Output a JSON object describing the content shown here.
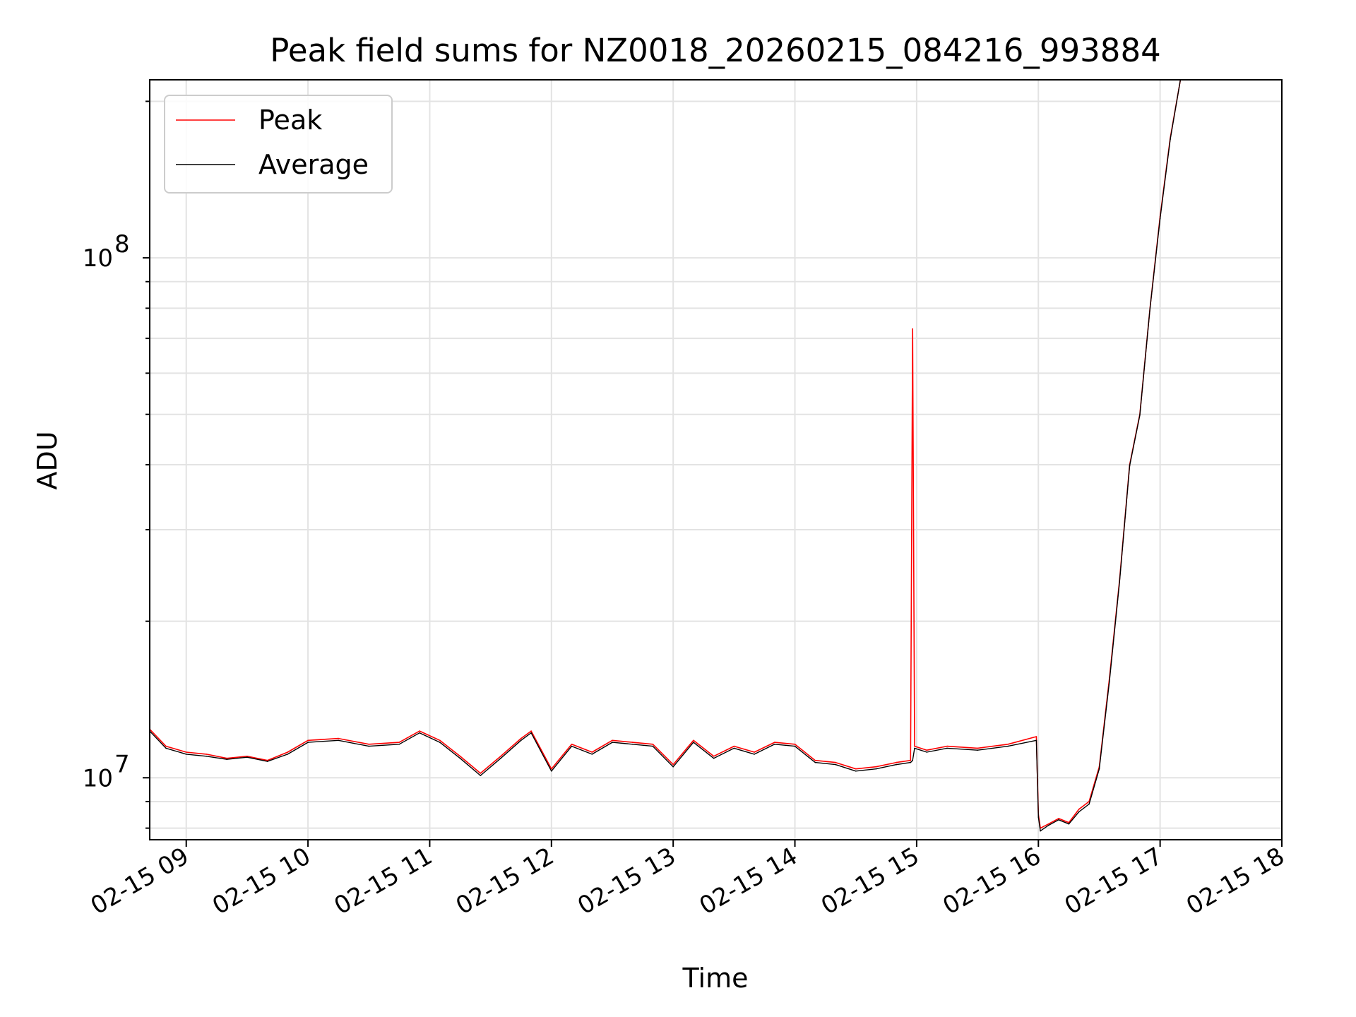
{
  "chart_data": {
    "type": "line",
    "title": "Peak field sums for NZ0018_20260215_084216_993884",
    "xlabel": "Time",
    "ylabel": "ADU",
    "yscale": "log",
    "grid": true,
    "legend_position": "upper-left",
    "xlim": [
      "2026-02-15 08:42",
      "2026-02-15 18:00"
    ],
    "ylim": [
      7600000,
      220000000
    ],
    "x_tick_labels": [
      "02-15 09",
      "02-15 10",
      "02-15 11",
      "02-15 12",
      "02-15 13",
      "02-15 14",
      "02-15 15",
      "02-15 16",
      "02-15 17",
      "02-15 18"
    ],
    "y_tick_labels": [
      {
        "base": "10",
        "exp": "7",
        "value": 10000000
      },
      {
        "base": "10",
        "exp": "8",
        "value": 100000000
      }
    ],
    "series": [
      {
        "name": "Peak",
        "color": "#ff0000",
        "x": [
          "08:42",
          "08:50",
          "09:00",
          "09:10",
          "09:20",
          "09:30",
          "09:40",
          "09:50",
          "10:00",
          "10:15",
          "10:30",
          "10:45",
          "10:55",
          "11:05",
          "11:15",
          "11:25",
          "11:35",
          "11:45",
          "11:50",
          "12:00",
          "12:10",
          "12:20",
          "12:30",
          "12:40",
          "12:50",
          "13:00",
          "13:10",
          "13:20",
          "13:30",
          "13:40",
          "13:50",
          "14:00",
          "14:10",
          "14:20",
          "14:30",
          "14:40",
          "14:50",
          "14:57",
          "14:58",
          "14:59",
          "15:05",
          "15:15",
          "15:30",
          "15:45",
          "15:59",
          "16:00",
          "16:01",
          "16:05",
          "16:10",
          "16:15",
          "16:20",
          "16:25",
          "16:30",
          "16:35",
          "16:40",
          "16:45",
          "16:50",
          "16:55",
          "17:00",
          "17:05",
          "17:10",
          "17:15",
          "17:20"
        ],
        "y": [
          12400000,
          11500000,
          11200000,
          11100000,
          10900000,
          11000000,
          10800000,
          11200000,
          11800000,
          11900000,
          11600000,
          11700000,
          12300000,
          11800000,
          11000000,
          10200000,
          11000000,
          11900000,
          12300000,
          10400000,
          11600000,
          11200000,
          11800000,
          11700000,
          11600000,
          10600000,
          11800000,
          11000000,
          11500000,
          11200000,
          11700000,
          11600000,
          10800000,
          10700000,
          10400000,
          10500000,
          10700000,
          10800000,
          73000000,
          11500000,
          11300000,
          11500000,
          11400000,
          11600000,
          12000000,
          8500000,
          8000000,
          8150000,
          8350000,
          8200000,
          8700000,
          9000000,
          10500000,
          15500000,
          24000000,
          40000000,
          50000000,
          80000000,
          120000000,
          170000000,
          220000000,
          220000000,
          220000000
        ]
      },
      {
        "name": "Average",
        "color": "#000000",
        "x": [
          "08:42",
          "08:50",
          "09:00",
          "09:10",
          "09:20",
          "09:30",
          "09:40",
          "09:50",
          "10:00",
          "10:15",
          "10:30",
          "10:45",
          "10:55",
          "11:05",
          "11:15",
          "11:25",
          "11:35",
          "11:45",
          "11:50",
          "12:00",
          "12:10",
          "12:20",
          "12:30",
          "12:40",
          "12:50",
          "13:00",
          "13:10",
          "13:20",
          "13:30",
          "13:40",
          "13:50",
          "14:00",
          "14:10",
          "14:20",
          "14:30",
          "14:40",
          "14:50",
          "14:57",
          "14:58",
          "14:59",
          "15:05",
          "15:15",
          "15:30",
          "15:45",
          "15:59",
          "16:00",
          "16:01",
          "16:05",
          "16:10",
          "16:15",
          "16:20",
          "16:25",
          "16:30",
          "16:35",
          "16:40",
          "16:45",
          "16:50",
          "16:55",
          "17:00",
          "17:05",
          "17:10",
          "17:15",
          "17:20"
        ],
        "y": [
          12300000,
          11400000,
          11100000,
          11000000,
          10850000,
          10950000,
          10750000,
          11100000,
          11700000,
          11800000,
          11500000,
          11600000,
          12200000,
          11700000,
          10900000,
          10100000,
          10900000,
          11800000,
          12200000,
          10300000,
          11500000,
          11100000,
          11700000,
          11600000,
          11500000,
          10500000,
          11700000,
          10900000,
          11400000,
          11100000,
          11600000,
          11500000,
          10700000,
          10600000,
          10300000,
          10400000,
          10600000,
          10700000,
          10800000,
          11400000,
          11200000,
          11400000,
          11300000,
          11500000,
          11800000,
          8400000,
          7900000,
          8100000,
          8300000,
          8150000,
          8600000,
          8900000,
          10400000,
          15300000,
          23800000,
          39800000,
          49800000,
          79800000,
          119000000,
          169000000,
          220000000,
          220000000,
          220000000
        ]
      }
    ]
  }
}
